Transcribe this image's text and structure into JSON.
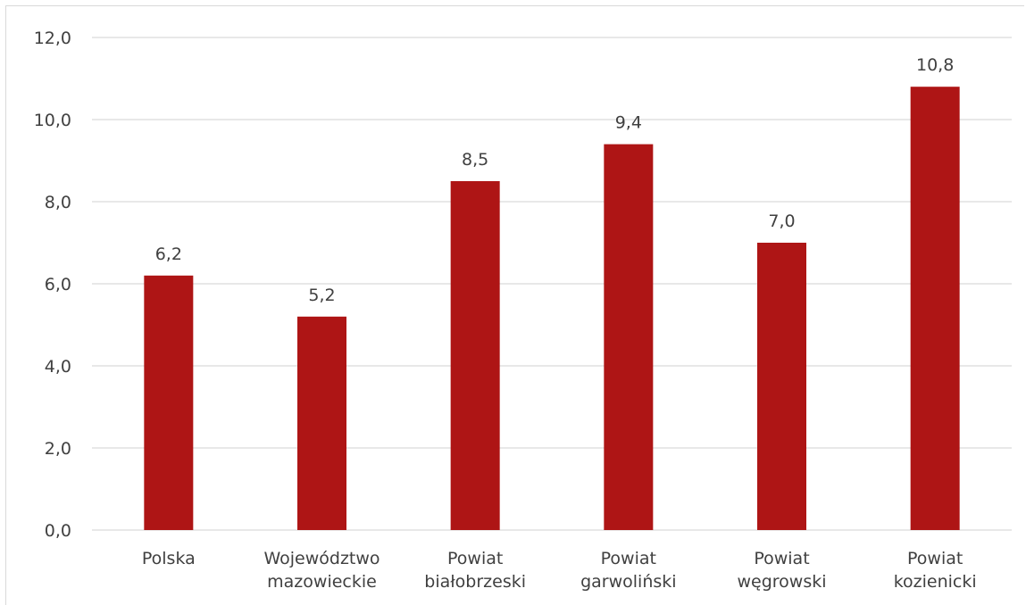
{
  "chart_data": {
    "type": "bar",
    "categories": [
      [
        "Polska"
      ],
      [
        "Województwo",
        "mazowieckie"
      ],
      [
        "Powiat",
        "białobrzeski"
      ],
      [
        "Powiat",
        "garwoliński"
      ],
      [
        "Powiat",
        "węgrowski"
      ],
      [
        "Powiat",
        "kozienicki"
      ]
    ],
    "values": [
      6.2,
      5.2,
      8.5,
      9.4,
      7.0,
      10.8
    ],
    "value_labels": [
      "6,2",
      "5,2",
      "8,5",
      "9,4",
      "7,0",
      "10,8"
    ],
    "title": "",
    "xlabel": "",
    "ylabel": "",
    "ylim": [
      0,
      12
    ],
    "yticks": [
      0,
      2,
      4,
      6,
      8,
      10,
      12
    ],
    "ytick_labels": [
      "0,0",
      "2,0",
      "4,0",
      "6,0",
      "8,0",
      "10,0",
      "12,0"
    ],
    "grid": true,
    "legend": "none",
    "bar_color": "#ae1515"
  }
}
